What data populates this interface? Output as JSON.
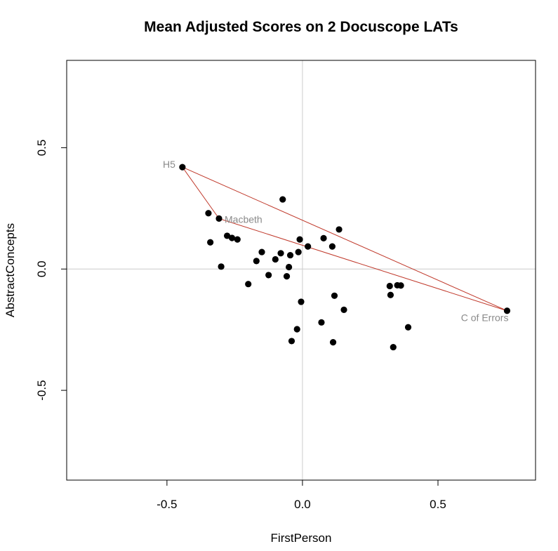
{
  "chart_data": {
    "type": "scatter",
    "title": "Mean Adjusted Scores on 2 Docuscope LATs",
    "xlabel": "FirstPerson",
    "ylabel": "AbstractConcepts",
    "xlim": [
      -0.87,
      0.86
    ],
    "ylim": [
      -0.87,
      0.86
    ],
    "xticks": [
      -0.5,
      0.0,
      0.5
    ],
    "xtick_labels": [
      "-0.5",
      "0.0",
      "0.5"
    ],
    "yticks": [
      -0.5,
      0.0,
      0.5
    ],
    "ytick_labels": [
      "-0.5",
      "0.0",
      "0.5"
    ],
    "grid": false,
    "reference_lines": {
      "x": 0,
      "y": 0,
      "color": "#cccccc"
    },
    "point_color": "#000000",
    "line_color": "#c0392b",
    "points": [
      {
        "x": -0.443,
        "y": 0.42
      },
      {
        "x": -0.347,
        "y": 0.23
      },
      {
        "x": -0.308,
        "y": 0.208
      },
      {
        "x": -0.34,
        "y": 0.11
      },
      {
        "x": -0.3,
        "y": 0.01
      },
      {
        "x": -0.278,
        "y": 0.137
      },
      {
        "x": -0.26,
        "y": 0.128
      },
      {
        "x": -0.24,
        "y": 0.122
      },
      {
        "x": -0.2,
        "y": -0.062
      },
      {
        "x": -0.17,
        "y": 0.033
      },
      {
        "x": -0.15,
        "y": 0.07
      },
      {
        "x": -0.125,
        "y": -0.025
      },
      {
        "x": -0.1,
        "y": 0.04
      },
      {
        "x": -0.08,
        "y": 0.065
      },
      {
        "x": -0.073,
        "y": 0.287
      },
      {
        "x": -0.058,
        "y": -0.03
      },
      {
        "x": -0.05,
        "y": 0.008
      },
      {
        "x": -0.045,
        "y": 0.057
      },
      {
        "x": -0.04,
        "y": -0.297
      },
      {
        "x": -0.02,
        "y": -0.248
      },
      {
        "x": -0.015,
        "y": 0.07
      },
      {
        "x": -0.01,
        "y": 0.122
      },
      {
        "x": -0.005,
        "y": -0.135
      },
      {
        "x": 0.02,
        "y": 0.093
      },
      {
        "x": 0.07,
        "y": -0.22
      },
      {
        "x": 0.078,
        "y": 0.127
      },
      {
        "x": 0.11,
        "y": 0.093
      },
      {
        "x": 0.113,
        "y": -0.302
      },
      {
        "x": 0.118,
        "y": -0.11
      },
      {
        "x": 0.135,
        "y": 0.163
      },
      {
        "x": 0.153,
        "y": -0.168
      },
      {
        "x": 0.322,
        "y": -0.07
      },
      {
        "x": 0.325,
        "y": -0.107
      },
      {
        "x": 0.335,
        "y": -0.322
      },
      {
        "x": 0.35,
        "y": -0.067
      },
      {
        "x": 0.363,
        "y": -0.068
      },
      {
        "x": 0.39,
        "y": -0.24
      },
      {
        "x": 0.755,
        "y": -0.172
      }
    ],
    "highlight": [
      {
        "label": "H5",
        "x": -0.443,
        "y": 0.42,
        "label_side": "left"
      },
      {
        "label": "Macbeth",
        "x": -0.308,
        "y": 0.208,
        "label_side": "right"
      },
      {
        "label": "C of Errors",
        "x": 0.755,
        "y": -0.172,
        "label_side": "below-left"
      }
    ]
  }
}
